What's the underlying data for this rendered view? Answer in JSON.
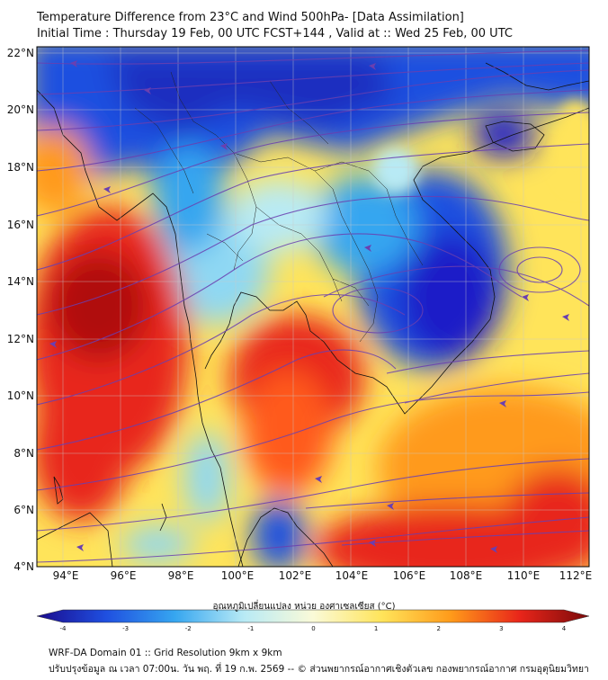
{
  "header": {
    "title_line1": "Temperature Difference from 23°C and Wind 500hPa- [Data Assimilation]",
    "title_line2": "Initial Time : Thursday 19 Feb, 00 UTC FCST+144 , Valid at ::  Wed 25 Feb, 00 UTC"
  },
  "map": {
    "lat_labels": [
      "22°N",
      "20°N",
      "18°N",
      "16°N",
      "14°N",
      "12°N",
      "10°N",
      "8°N",
      "6°N",
      "4°N"
    ],
    "lon_labels": [
      "94°E",
      "96°E",
      "98°E",
      "100°E",
      "102°E",
      "104°E",
      "106°E",
      "108°E",
      "110°E",
      "112°E"
    ],
    "streamline_color": "#6a3fb0"
  },
  "colorbar": {
    "title": "อุณหภูมิเปลี่ยนแปลง หน่วย องศาเซลเซียส (°C)",
    "ticks": [
      "-4",
      "-3",
      "-2",
      "-1",
      "0",
      "1",
      "2",
      "3",
      "4"
    ],
    "colors": [
      "#1a0a8c",
      "#1f4fe0",
      "#36a6f0",
      "#b8eaf5",
      "#fafad8",
      "#ffe45a",
      "#ff9a1a",
      "#e8251a",
      "#7a0a0a"
    ]
  },
  "footer": {
    "line1": "WRF-DA Domain 01 :: Grid Resolution 9km x 9km",
    "line2": "ปรับปรุงข้อมูล ณ เวลา 07:00น. วัน พฤ. ที่ 19 ก.พ. 2569 -- © ส่วนพยากรณ์อากาศเชิงตัวเลข กองพยากรณ์อากาศ กรมอุตุนิยมวิทยา"
  }
}
